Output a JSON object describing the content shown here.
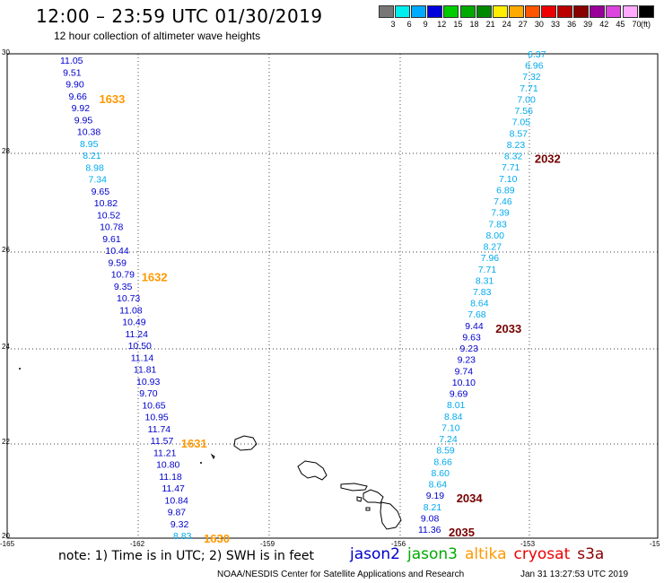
{
  "header": {
    "title": "12:00 – 23:59 UTC 01/30/2019",
    "subtitle": "12 hour collection of altimeter wave heights"
  },
  "color_scale": {
    "unit": "(ft)",
    "bins": [
      {
        "label": "3",
        "color": "#777777"
      },
      {
        "label": "6",
        "color": "#00eeee"
      },
      {
        "label": "9",
        "color": "#00aaff"
      },
      {
        "label": "12",
        "color": "#0000dd"
      },
      {
        "label": "15",
        "color": "#00cc00"
      },
      {
        "label": "18",
        "color": "#00aa00"
      },
      {
        "label": "21",
        "color": "#008800"
      },
      {
        "label": "24",
        "color": "#ffee00"
      },
      {
        "label": "27",
        "color": "#ffaa00"
      },
      {
        "label": "30",
        "color": "#ff5500"
      },
      {
        "label": "33",
        "color": "#ee0000"
      },
      {
        "label": "36",
        "color": "#bb0000"
      },
      {
        "label": "39",
        "color": "#880000"
      },
      {
        "label": "42",
        "color": "#990099"
      },
      {
        "label": "45",
        "color": "#dd44dd"
      },
      {
        "label": "70",
        "color": "#ffaaff"
      },
      {
        "label": "",
        "color": "#000000"
      }
    ]
  },
  "axes": {
    "lon_labels": [
      "-165",
      "-162",
      "-159",
      "-156",
      "-153",
      "-15"
    ],
    "lat_labels": [
      "30",
      "28",
      "26",
      "24",
      "22",
      "20"
    ]
  },
  "tracks": [
    {
      "values": [
        "11.05",
        "9.51",
        "9.90",
        "9.66",
        "9.92",
        "9.95",
        "10.38",
        "8.95",
        "8.21",
        "8.98",
        "7.34",
        "9.65",
        "10.82",
        "10.52",
        "10.78",
        "9.61",
        "10.44",
        "9.59",
        "10.79",
        "9.35",
        "10.73",
        "11.08",
        "10.49",
        "11.24",
        "10.50",
        "11.14",
        "11.81",
        "10.93",
        "9.70",
        "10.65",
        "10.95",
        "11.74",
        "11.57",
        "11.21",
        "10.80",
        "11.18",
        "11.47",
        "10.84",
        "9.87",
        "9.32",
        "8.83"
      ],
      "times": [
        {
          "label": "1633",
          "after_index": 3
        },
        {
          "label": "1632",
          "after_index": 18
        },
        {
          "label": "1631",
          "after_index": 32
        },
        {
          "label": "1630",
          "after_index": 40
        }
      ],
      "time_color": "#ff9900"
    },
    {
      "values": [
        "6.37",
        "6.96",
        "7.32",
        "7.71",
        "7.00",
        "7.56",
        "7.05",
        "8.57",
        "8.23",
        "8.32",
        "7.71",
        "7.10",
        "6.89",
        "7.46",
        "7.39",
        "7.83",
        "8.00",
        "8.27",
        "7.96",
        "7.71",
        "8.31",
        "7.83",
        "8.64",
        "7.68",
        "9.44",
        "9.63",
        "9.23",
        "9.23",
        "9.74",
        "10.10",
        "9.69",
        "8.01",
        "8.84",
        "7.10",
        "7.24",
        "8.59",
        "8.66",
        "8.60",
        "8.64",
        "9.19",
        "8.21",
        "9.08",
        "11.36"
      ],
      "times": [
        {
          "label": "2032",
          "after_index": 9
        },
        {
          "label": "2033",
          "after_index": 24
        },
        {
          "label": "2034",
          "after_index": 39
        },
        {
          "label": "2035",
          "after_index": 42
        }
      ],
      "time_color": "#770000"
    }
  ],
  "footer": {
    "note": "note: 1) Time is in UTC; 2) SWH is in feet",
    "satellites": [
      {
        "name": "jason2",
        "color": "#0000cc"
      },
      {
        "name": "jason3",
        "color": "#00aa00"
      },
      {
        "name": "altika",
        "color": "#ff9900"
      },
      {
        "name": "cryosat",
        "color": "#ee0000"
      },
      {
        "name": "s3a",
        "color": "#880000"
      }
    ],
    "credit": "NOAA/NESDIS Center for Satellite Applications and Research",
    "timestamp": "Jan 31 13:27:53 UTC 2019"
  }
}
